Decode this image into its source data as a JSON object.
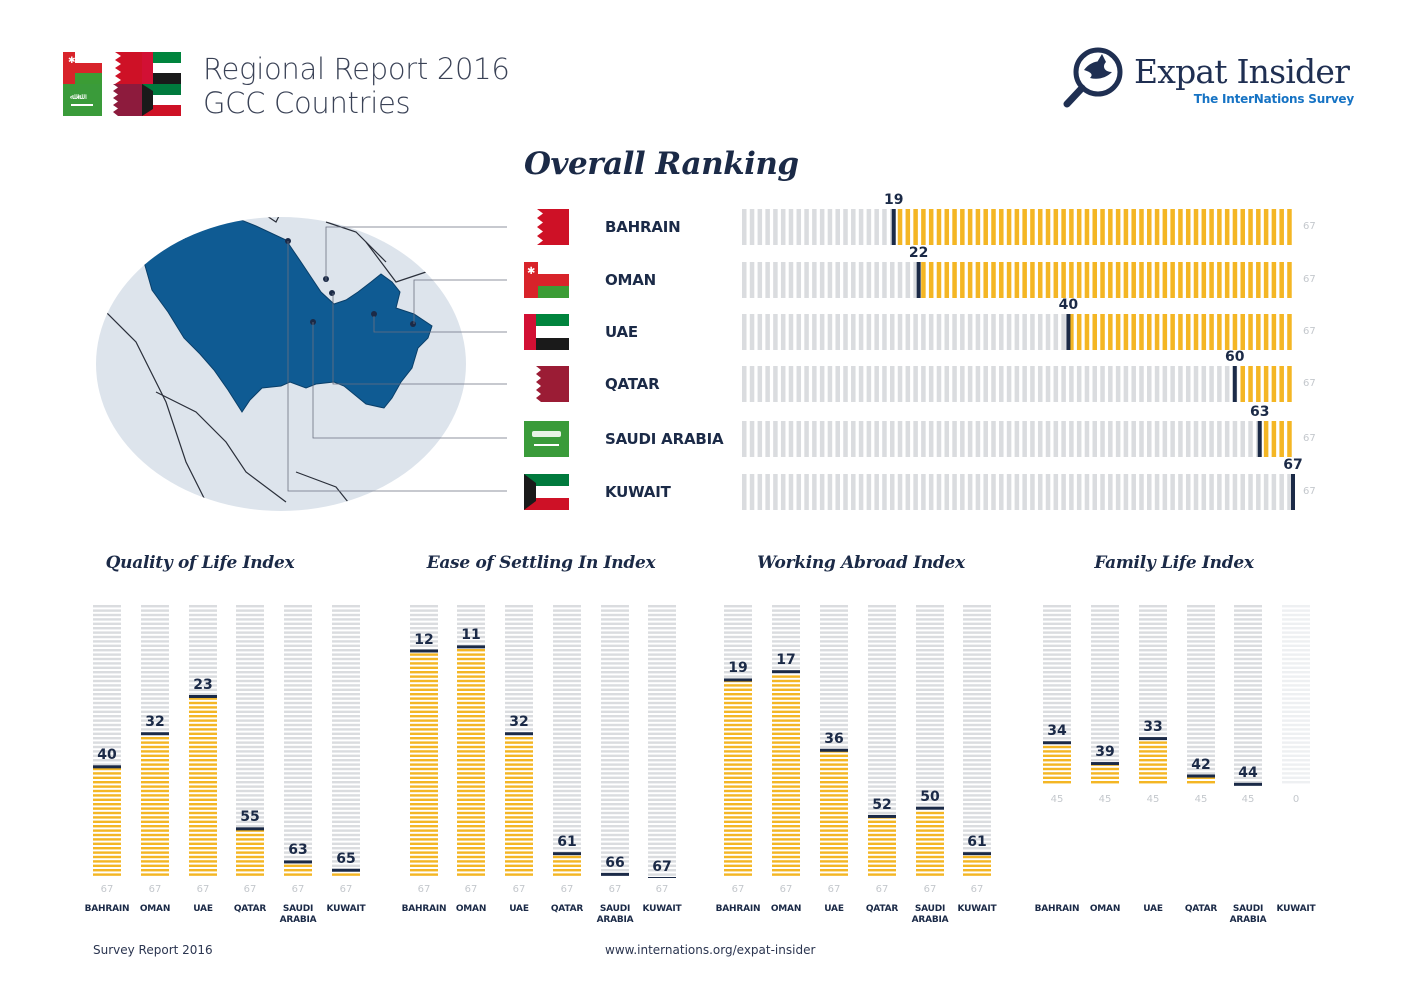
{
  "header": {
    "title_line1": "Regional Report 2016",
    "title_line2": "GCC Countries"
  },
  "logo": {
    "name": "Expat Insider",
    "subtitle": "The InterNations Survey"
  },
  "colors": {
    "accent": "#f4b624",
    "track": "#dadcdf",
    "marker": "#1b2a47",
    "map_land": "#0f5b93",
    "map_circle": "#dde4ec",
    "text": "#1b2a47"
  },
  "overall": {
    "title": "Overall Ranking",
    "max": 67,
    "countries": [
      {
        "name": "BAHRAIN",
        "flag": "bahrain-flag",
        "rank": 19
      },
      {
        "name": "OMAN",
        "flag": "oman-flag",
        "rank": 22
      },
      {
        "name": "UAE",
        "flag": "uae-flag",
        "rank": 40
      },
      {
        "name": "QATAR",
        "flag": "qatar-flag",
        "rank": 60
      },
      {
        "name": "SAUDI ARABIA",
        "flag": "saudi-arabia-flag",
        "rank": 63
      },
      {
        "name": "KUWAIT",
        "flag": "kuwait-flag",
        "rank": 67
      }
    ]
  },
  "chart_data": [
    {
      "type": "bar",
      "title": "Overall Ranking",
      "categories": [
        "BAHRAIN",
        "OMAN",
        "UAE",
        "QATAR",
        "SAUDI ARABIA",
        "KUWAIT"
      ],
      "values": [
        19,
        22,
        40,
        60,
        63,
        67
      ],
      "max": 67,
      "orientation": "horizontal"
    },
    {
      "type": "bar",
      "title": "Quality of Life Index",
      "categories": [
        "BAHRAIN",
        "OMAN",
        "UAE",
        "QATAR",
        "SAUDI ARABIA",
        "KUWAIT"
      ],
      "values": [
        40,
        32,
        23,
        55,
        63,
        65
      ],
      "max": [
        67,
        67,
        67,
        67,
        67,
        67
      ]
    },
    {
      "type": "bar",
      "title": "Ease of Settling In Index",
      "categories": [
        "BAHRAIN",
        "OMAN",
        "UAE",
        "QATAR",
        "SAUDI ARABIA",
        "KUWAIT"
      ],
      "values": [
        12,
        11,
        32,
        61,
        66,
        67
      ],
      "max": [
        67,
        67,
        67,
        67,
        67,
        67
      ]
    },
    {
      "type": "bar",
      "title": "Working Abroad Index",
      "categories": [
        "BAHRAIN",
        "OMAN",
        "UAE",
        "QATAR",
        "SAUDI ARABIA",
        "KUWAIT"
      ],
      "values": [
        19,
        17,
        36,
        52,
        50,
        61
      ],
      "max": [
        67,
        67,
        67,
        67,
        67,
        67
      ]
    },
    {
      "type": "bar",
      "title": "Family Life Index",
      "categories": [
        "BAHRAIN",
        "OMAN",
        "UAE",
        "QATAR",
        "SAUDI ARABIA",
        "KUWAIT"
      ],
      "values": [
        34,
        39,
        33,
        42,
        44,
        null
      ],
      "max": [
        45,
        45,
        45,
        45,
        45,
        0
      ]
    }
  ],
  "footer": {
    "left": "Survey Report 2016",
    "url": "www.internations.org/expat-insider"
  }
}
